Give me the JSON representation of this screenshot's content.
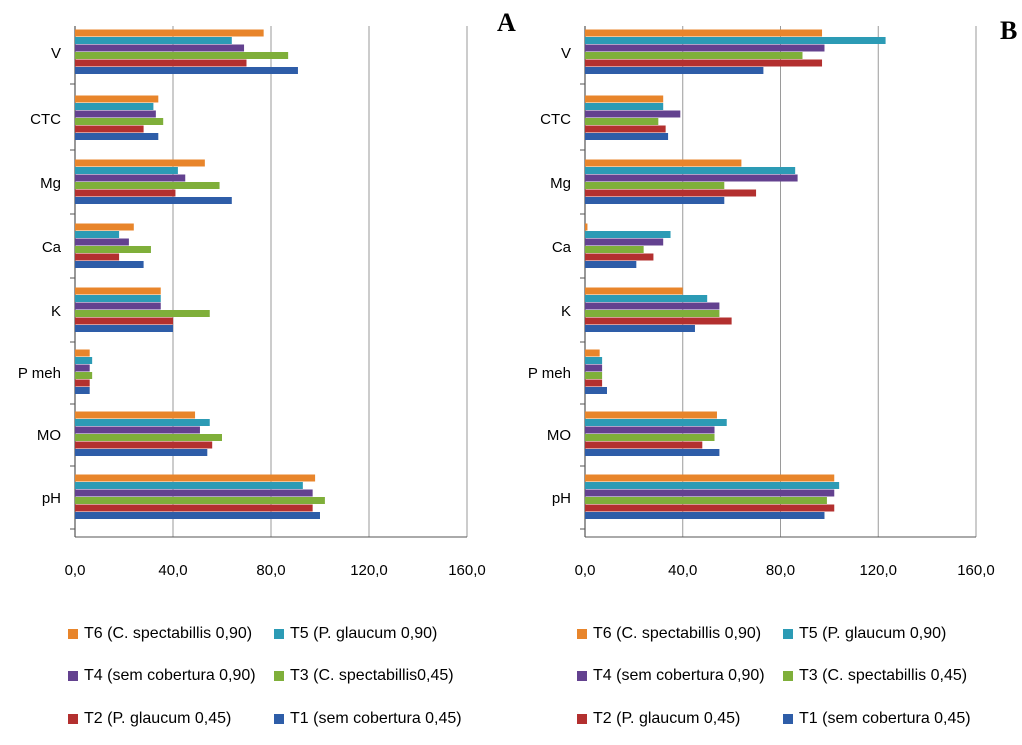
{
  "figure": {
    "panels": [
      "A",
      "B"
    ]
  },
  "colors": {
    "T1": "#2E5DA8",
    "T2": "#B3302F",
    "T3": "#7FAF3A",
    "T4": "#63418F",
    "T5": "#2C9BB5",
    "T6": "#E8852B"
  },
  "chart_data": [
    {
      "type": "bar",
      "orientation": "horizontal",
      "panel": "A",
      "categories": [
        "pH",
        "MO",
        "P meh",
        "K",
        "Ca",
        "Mg",
        "CTC",
        "V"
      ],
      "xlim": [
        0,
        160
      ],
      "xticks": [
        "0,0",
        "40,0",
        "80,0",
        "120,0",
        "160,0"
      ],
      "grid": "vertical",
      "legend": "bottom",
      "series": [
        {
          "name": "T1 (sem cobertura 0,45)",
          "color_key": "T1",
          "values": [
            100,
            54,
            6,
            40,
            28,
            64,
            34,
            91
          ]
        },
        {
          "name": "T2 (P. glaucum 0,45)",
          "color_key": "T2",
          "values": [
            97,
            56,
            6,
            40,
            18,
            41,
            28,
            70
          ]
        },
        {
          "name": "T3 (C. spectabillis0,45)",
          "color_key": "T3",
          "values": [
            102,
            60,
            7,
            55,
            31,
            59,
            36,
            87
          ]
        },
        {
          "name": "T4 (sem cobertura 0,90)",
          "color_key": "T4",
          "values": [
            97,
            51,
            6,
            35,
            22,
            45,
            33,
            69
          ]
        },
        {
          "name": "T5 (P. glaucum 0,90)",
          "color_key": "T5",
          "values": [
            93,
            55,
            7,
            35,
            18,
            42,
            32,
            64
          ]
        },
        {
          "name": "T6 (C. spectabillis 0,90)",
          "color_key": "T6",
          "values": [
            98,
            49,
            6,
            35,
            24,
            53,
            34,
            77
          ]
        }
      ]
    },
    {
      "type": "bar",
      "orientation": "horizontal",
      "panel": "B",
      "categories": [
        "pH",
        "MO",
        "P meh",
        "K",
        "Ca",
        "Mg",
        "CTC",
        "V"
      ],
      "xlim": [
        0,
        160
      ],
      "xticks": [
        "0,0",
        "40,0",
        "80,0",
        "120,0",
        "160,0"
      ],
      "grid": "vertical",
      "legend": "bottom",
      "series": [
        {
          "name": "T1 (sem cobertura 0,45)",
          "color_key": "T1",
          "values": [
            98,
            55,
            9,
            45,
            21,
            57,
            34,
            73
          ]
        },
        {
          "name": "T2 (P. glaucum 0,45)",
          "color_key": "T2",
          "values": [
            102,
            48,
            7,
            60,
            28,
            70,
            33,
            97
          ]
        },
        {
          "name": "T3 (C. spectabillis 0,45)",
          "color_key": "T3",
          "values": [
            99,
            53,
            7,
            55,
            24,
            57,
            30,
            89
          ]
        },
        {
          "name": "T4 (sem cobertura 0,90)",
          "color_key": "T4",
          "values": [
            102,
            53,
            7,
            55,
            32,
            87,
            39,
            98
          ]
        },
        {
          "name": "T5 (P. glaucum 0,90)",
          "color_key": "T5",
          "values": [
            104,
            58,
            7,
            50,
            35,
            86,
            32,
            123
          ]
        },
        {
          "name": "T6 (C. spectabillis 0,90)",
          "color_key": "T6",
          "values": [
            102,
            54,
            6,
            40,
            1,
            64,
            32,
            97
          ]
        }
      ]
    }
  ],
  "legend_layout": [
    [
      "T6",
      "T5"
    ],
    [
      "T4",
      "T3"
    ],
    [
      "T2",
      "T1"
    ]
  ]
}
